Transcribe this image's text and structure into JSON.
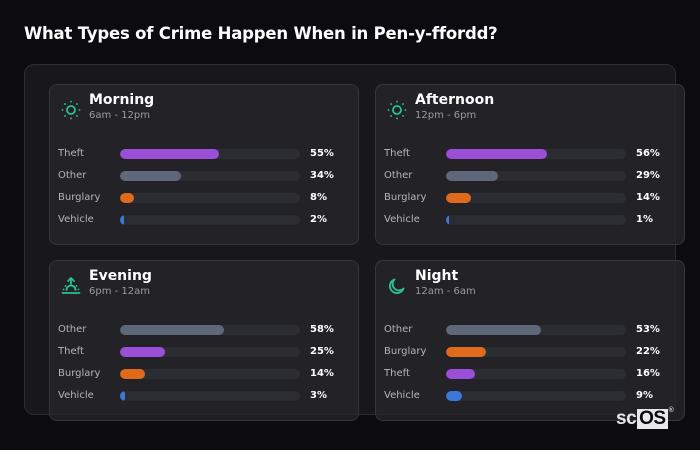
{
  "title": "What Types of Crime Happen When in Pen-y-ffordd?",
  "colors": {
    "Theft": "#9a4fd6",
    "Other": "#5f6878",
    "Burglary": "#e06a1c",
    "Vehicle": "#3b78d8",
    "icon": "#2bbf91"
  },
  "cards": [
    {
      "title": "Morning",
      "subtitle": "6am - 12pm",
      "icon": "sun-icon",
      "rows": [
        {
          "label": "Theft",
          "value": 55,
          "value_label": "55%"
        },
        {
          "label": "Other",
          "value": 34,
          "value_label": "34%"
        },
        {
          "label": "Burglary",
          "value": 8,
          "value_label": "8%"
        },
        {
          "label": "Vehicle",
          "value": 2,
          "value_label": "2%"
        }
      ]
    },
    {
      "title": "Afternoon",
      "subtitle": "12pm - 6pm",
      "icon": "sun-icon",
      "rows": [
        {
          "label": "Theft",
          "value": 56,
          "value_label": "56%"
        },
        {
          "label": "Other",
          "value": 29,
          "value_label": "29%"
        },
        {
          "label": "Burglary",
          "value": 14,
          "value_label": "14%"
        },
        {
          "label": "Vehicle",
          "value": 1,
          "value_label": "1%"
        }
      ]
    },
    {
      "title": "Evening",
      "subtitle": "6pm - 12am",
      "icon": "sunset-icon",
      "rows": [
        {
          "label": "Other",
          "value": 58,
          "value_label": "58%"
        },
        {
          "label": "Theft",
          "value": 25,
          "value_label": "25%"
        },
        {
          "label": "Burglary",
          "value": 14,
          "value_label": "14%"
        },
        {
          "label": "Vehicle",
          "value": 3,
          "value_label": "3%"
        }
      ]
    },
    {
      "title": "Night",
      "subtitle": "12am - 6am",
      "icon": "moon-icon",
      "rows": [
        {
          "label": "Other",
          "value": 53,
          "value_label": "53%"
        },
        {
          "label": "Burglary",
          "value": 22,
          "value_label": "22%"
        },
        {
          "label": "Theft",
          "value": 16,
          "value_label": "16%"
        },
        {
          "label": "Vehicle",
          "value": 9,
          "value_label": "9%"
        }
      ]
    }
  ],
  "logo": {
    "left": "sc",
    "right": "OS",
    "mark": "®"
  },
  "chart_data": [
    {
      "type": "bar",
      "orientation": "horizontal",
      "title": "Morning (6am - 12pm)",
      "categories": [
        "Theft",
        "Other",
        "Burglary",
        "Vehicle"
      ],
      "values": [
        55,
        34,
        8,
        2
      ],
      "unit": "%",
      "xlim": [
        0,
        100
      ],
      "grid": false
    },
    {
      "type": "bar",
      "orientation": "horizontal",
      "title": "Afternoon (12pm - 6pm)",
      "categories": [
        "Theft",
        "Other",
        "Burglary",
        "Vehicle"
      ],
      "values": [
        56,
        29,
        14,
        1
      ],
      "unit": "%",
      "xlim": [
        0,
        100
      ],
      "grid": false
    },
    {
      "type": "bar",
      "orientation": "horizontal",
      "title": "Evening (6pm - 12am)",
      "categories": [
        "Other",
        "Theft",
        "Burglary",
        "Vehicle"
      ],
      "values": [
        58,
        25,
        14,
        3
      ],
      "unit": "%",
      "xlim": [
        0,
        100
      ],
      "grid": false
    },
    {
      "type": "bar",
      "orientation": "horizontal",
      "title": "Night (12am - 6am)",
      "categories": [
        "Other",
        "Burglary",
        "Theft",
        "Vehicle"
      ],
      "values": [
        53,
        22,
        16,
        9
      ],
      "unit": "%",
      "xlim": [
        0,
        100
      ],
      "grid": false
    }
  ]
}
